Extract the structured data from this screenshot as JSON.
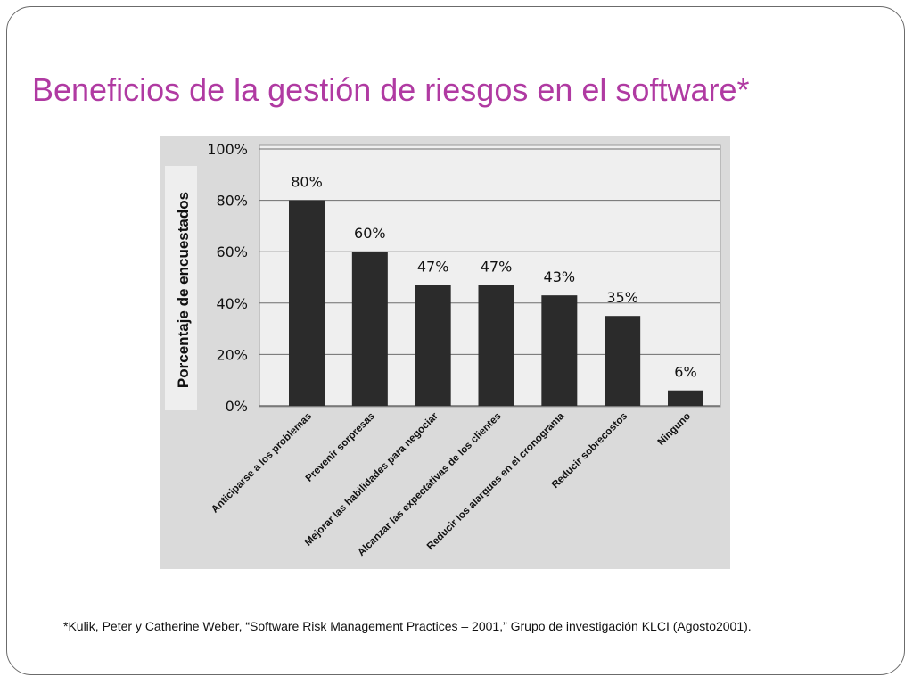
{
  "slide": {
    "title": "Beneficios de la gestión de riesgos en el software*",
    "footnote": "*Kulik, Peter y Catherine Weber, “Software Risk Management Practices – 2001,” Grupo de investigación KLCI (Agosto2001)."
  },
  "colors": {
    "title": "#b03aa2",
    "bar": "#2b2b2b",
    "plot_background": "#efefef",
    "panel_background": "#dadada",
    "gridline": "#6e6e6e"
  },
  "chart_data": {
    "type": "bar",
    "title": "",
    "xlabel": "",
    "ylabel": "Porcentaje de encuestados",
    "ylim": [
      0,
      100
    ],
    "yticks": [
      "0%",
      "20%",
      "40%",
      "60%",
      "80%",
      "100%"
    ],
    "ytick_values": [
      0,
      20,
      40,
      60,
      80,
      100
    ],
    "grid": true,
    "categories": [
      "Anticiparse a los problemas",
      "Prevenir sorpresas",
      "Mejorar las habilidades para negociar",
      "Alcanzar las expectativas de los clientes",
      "Reducir los alargues en el cronograma",
      "Reducir sobrecostos",
      "Ninguno"
    ],
    "values": [
      80,
      60,
      47,
      47,
      43,
      35,
      6
    ],
    "data_labels": [
      "80%",
      "60%",
      "47%",
      "47%",
      "43%",
      "35%",
      "6%"
    ]
  }
}
